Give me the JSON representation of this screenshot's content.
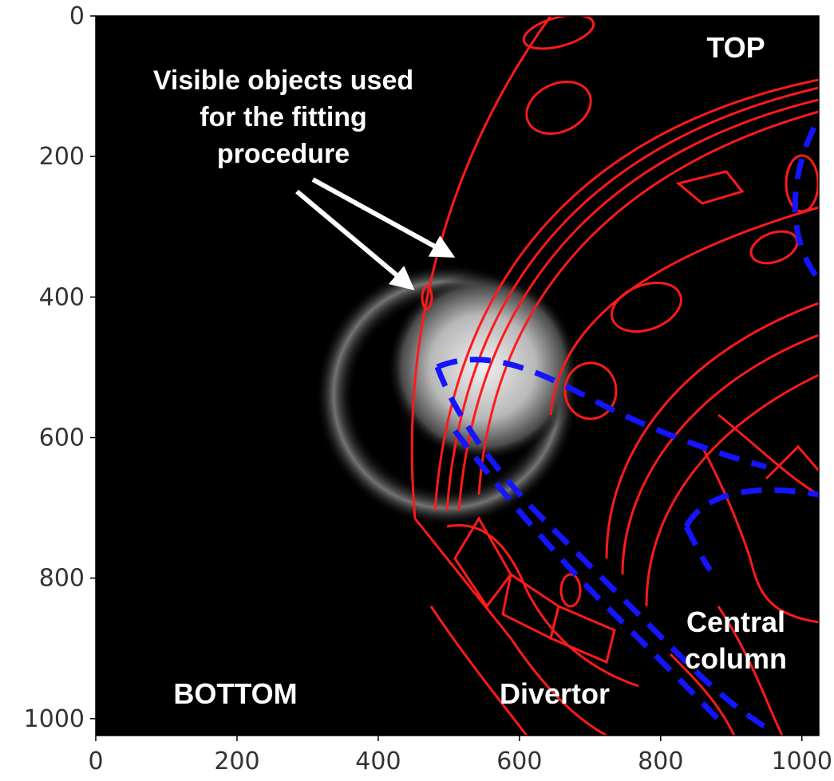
{
  "image": {
    "x_ticks": [
      "0",
      "200",
      "400",
      "600",
      "800",
      "1000"
    ],
    "y_ticks": [
      "0",
      "200",
      "400",
      "600",
      "800",
      "1000"
    ],
    "x_range": [
      0,
      1024
    ],
    "y_range": [
      1024,
      0
    ]
  },
  "annotations": {
    "visible_objects_line1": "Visible objects used",
    "visible_objects_line2": "for the fitting",
    "visible_objects_line3": "procedure",
    "top": "TOP",
    "bottom": "BOTTOM",
    "divertor": "Divertor",
    "central_column_line1": "Central",
    "central_column_line2": "column"
  },
  "colors": {
    "wireframe": "#ff1a1a",
    "dashed_overlay": "#1414ff",
    "background": "#000000",
    "arrows": "#ffffff"
  }
}
